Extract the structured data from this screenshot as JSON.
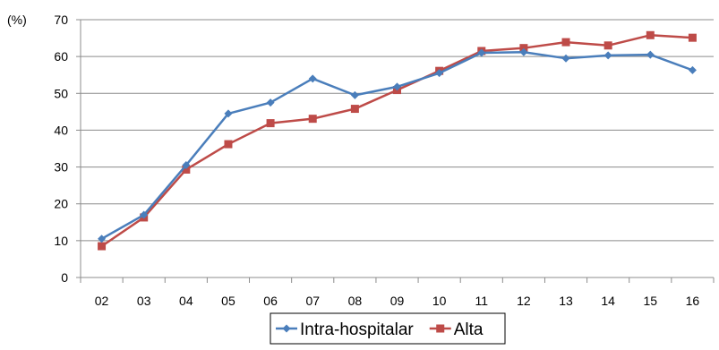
{
  "chart_data": {
    "type": "line",
    "y_unit_label": "(%)",
    "categories": [
      "02",
      "03",
      "04",
      "05",
      "06",
      "07",
      "08",
      "09",
      "10",
      "11",
      "12",
      "13",
      "14",
      "15",
      "16"
    ],
    "ylim": [
      0,
      70
    ],
    "yticks": [
      0,
      10,
      20,
      30,
      40,
      50,
      60,
      70
    ],
    "grid": "horizontal",
    "legend_position": "bottom-center",
    "series": [
      {
        "name": "Intra-hospitalar",
        "color": "#4a7ebb",
        "marker": "diamond",
        "values": [
          10.5,
          17.0,
          30.5,
          44.5,
          47.5,
          54.0,
          49.5,
          51.8,
          55.5,
          61.0,
          61.2,
          59.5,
          60.3,
          60.5,
          56.3
        ]
      },
      {
        "name": "Alta",
        "color": "#be4b48",
        "marker": "square",
        "values": [
          8.5,
          16.3,
          29.3,
          36.2,
          41.9,
          43.1,
          45.8,
          50.9,
          56.1,
          61.5,
          62.3,
          63.9,
          63.0,
          65.8,
          65.1
        ]
      }
    ]
  }
}
